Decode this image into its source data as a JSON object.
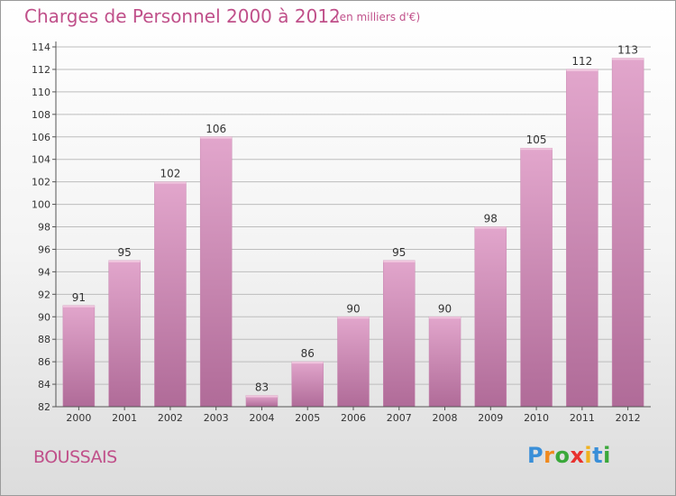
{
  "title": "Charges de Personnel 2000 à 2012",
  "subtitle": "(en milliers d'€)",
  "city": "BOUSSAIS",
  "logo": {
    "text": "Proxiti",
    "letters": [
      {
        "ch": "P",
        "color": "#3a8fd8"
      },
      {
        "ch": "r",
        "color": "#f08a1e"
      },
      {
        "ch": "o",
        "color": "#3aa83a"
      },
      {
        "ch": "x",
        "color": "#e8322e"
      },
      {
        "ch": "i",
        "color": "#f0b21e"
      },
      {
        "ch": "t",
        "color": "#3a8fd8"
      },
      {
        "ch": "i",
        "color": "#3aa83a"
      }
    ]
  },
  "colors": {
    "bar_light": "#e2a6cc",
    "bar_dark": "#b06b98",
    "title": "#c0508a",
    "grid": "#bdbdbd",
    "text": "#333333"
  },
  "chart_data": {
    "type": "bar",
    "categories": [
      "2000",
      "2001",
      "2002",
      "2003",
      "2004",
      "2005",
      "2006",
      "2007",
      "2008",
      "2009",
      "2010",
      "2011",
      "2012"
    ],
    "values": [
      91,
      95,
      102,
      106,
      83,
      86,
      90,
      95,
      90,
      98,
      105,
      112,
      113
    ],
    "ylim": [
      82,
      114
    ],
    "yticks": [
      82,
      84,
      86,
      88,
      90,
      92,
      94,
      96,
      98,
      100,
      102,
      104,
      106,
      108,
      110,
      112,
      114
    ],
    "grid": true,
    "xlabel": "",
    "ylabel": ""
  }
}
